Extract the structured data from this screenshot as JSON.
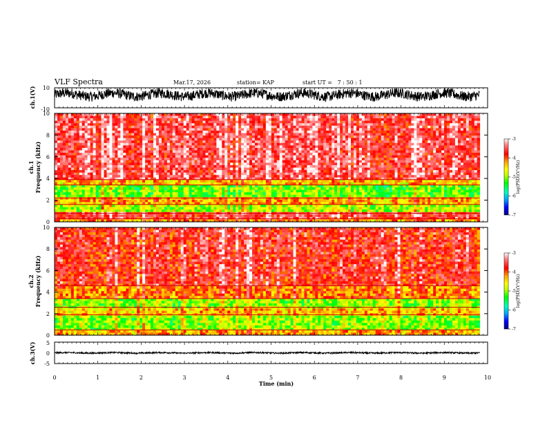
{
  "chart_data": {
    "type": "heatmap",
    "title": "VLF Spectra",
    "header": {
      "date": "Mar.17, 2026",
      "station": "station= KAP",
      "start_ut": "start UT =   7 : 50 : 1"
    },
    "xlabel": "Time (min)",
    "x_ticks": [
      "0",
      "1",
      "2",
      "3",
      "4",
      "5",
      "6",
      "7",
      "8",
      "9",
      "10"
    ],
    "xlim": [
      0,
      10
    ],
    "data_extent_min": 9.82,
    "panels": [
      {
        "id": "ch1-waveform",
        "type": "line",
        "ylabel": "ch.1(V)",
        "y_ticks": [
          "10",
          "-10"
        ],
        "ylim": [
          -10,
          10
        ],
        "mean": 3,
        "amplitude": 5
      },
      {
        "id": "ch1-spectrogram",
        "type": "heatmap",
        "ylabel": "ch.1\nFrequency (kHz)",
        "ylabel_lines": [
          "ch.1",
          "Frequency (kHz)"
        ],
        "y_ticks": [
          "0",
          "2",
          "4",
          "6",
          "8",
          "10"
        ],
        "ylim": [
          0,
          10
        ],
        "bands": [
          {
            "from_khz": 0.0,
            "to_khz": 0.3,
            "level": -4.2
          },
          {
            "from_khz": 0.3,
            "to_khz": 0.8,
            "level": -3.6
          },
          {
            "from_khz": 0.8,
            "to_khz": 1.6,
            "level": -4.9
          },
          {
            "from_khz": 1.6,
            "to_khz": 2.2,
            "level": -4.3
          },
          {
            "from_khz": 2.2,
            "to_khz": 3.4,
            "level": -5.1
          },
          {
            "from_khz": 3.4,
            "to_khz": 3.9,
            "level": -4.4
          },
          {
            "from_khz": 3.9,
            "to_khz": 10.0,
            "level": -3.5
          }
        ]
      },
      {
        "id": "ch2-spectrogram",
        "type": "heatmap",
        "ylabel": "ch.2\nFrequency (kHz)",
        "ylabel_lines": [
          "ch.2",
          "Frequency (kHz)"
        ],
        "y_ticks": [
          "0",
          "2",
          "4",
          "6",
          "8",
          "10"
        ],
        "ylim": [
          0,
          10
        ],
        "bands": [
          {
            "from_khz": 0.0,
            "to_khz": 0.5,
            "level": -4.3
          },
          {
            "from_khz": 0.5,
            "to_khz": 1.9,
            "level": -5.0
          },
          {
            "from_khz": 1.9,
            "to_khz": 2.6,
            "level": -4.4
          },
          {
            "from_khz": 2.6,
            "to_khz": 3.4,
            "level": -5.0
          },
          {
            "from_khz": 3.4,
            "to_khz": 4.6,
            "level": -4.1
          },
          {
            "from_khz": 4.6,
            "to_khz": 10.0,
            "level": -3.7
          }
        ]
      },
      {
        "id": "ch3-waveform",
        "type": "line",
        "ylabel": "ch.3(V)",
        "y_ticks": [
          "5",
          "0",
          "-5"
        ],
        "ylim": [
          -5,
          5
        ],
        "mean": 0,
        "amplitude": 0.35
      }
    ],
    "colorbar": {
      "label": "log(PSD)(V²/Hz)",
      "ticks": [
        "-3",
        "-4",
        "-5",
        "-6",
        "-7"
      ],
      "range": [
        -7,
        -3
      ]
    },
    "colors": {
      "gradient": [
        "#000080",
        "#0000ff",
        "#00a0ff",
        "#00ffc0",
        "#00ff00",
        "#c0ff00",
        "#ffff00",
        "#ffa000",
        "#ff0000",
        "#ff6060",
        "#ffffff"
      ]
    }
  }
}
